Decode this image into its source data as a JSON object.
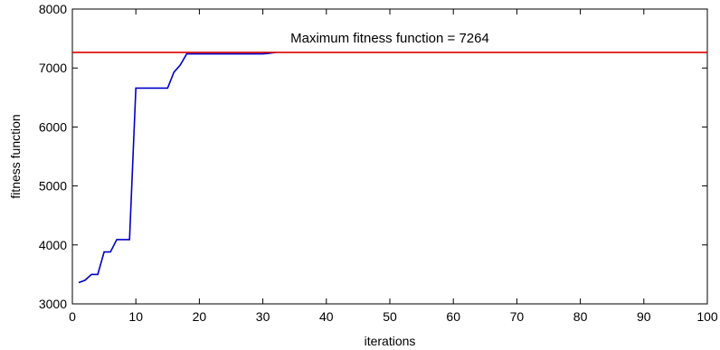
{
  "chart_data": {
    "type": "line",
    "title": "",
    "xlabel": "iterations",
    "ylabel": "fitness function",
    "xlim": [
      0,
      100
    ],
    "ylim": [
      3000,
      8000
    ],
    "xticks": [
      0,
      10,
      20,
      30,
      40,
      50,
      60,
      70,
      80,
      90,
      100
    ],
    "yticks": [
      3000,
      4000,
      5000,
      6000,
      7000,
      8000
    ],
    "grid": false,
    "series": [
      {
        "color": "#0000cc",
        "x": [
          1,
          2,
          3,
          4,
          5,
          6,
          7,
          8,
          9,
          10,
          11,
          12,
          13,
          14,
          15,
          16,
          17,
          18,
          19,
          20,
          21,
          22,
          23,
          24,
          25,
          26,
          27,
          28,
          29,
          30,
          31,
          32
        ],
        "y": [
          3360,
          3400,
          3500,
          3500,
          3880,
          3880,
          4090,
          4090,
          4090,
          6660,
          6660,
          6660,
          6660,
          6660,
          6660,
          6930,
          7050,
          7240,
          7240,
          7240,
          7240,
          7240,
          7240,
          7240,
          7240,
          7240,
          7240,
          7240,
          7240,
          7240,
          7250,
          7264
        ]
      }
    ],
    "reference_line": {
      "y": 7264,
      "color": "#dd0000",
      "label": "Maximum fitness function = 7264"
    }
  }
}
